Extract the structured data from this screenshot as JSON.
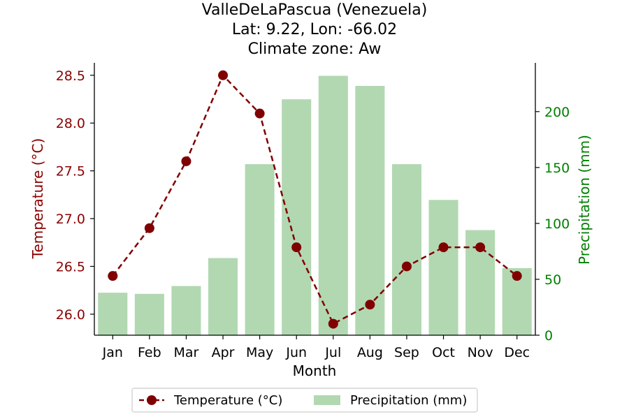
{
  "chart_data": {
    "type": "bar+line",
    "title": [
      "ValleDeLaPascua (Venezuela)",
      "Lat: 9.22, Lon: -66.02",
      "Climate zone: Aw"
    ],
    "xlabel": "Month",
    "ylabel_left": "Temperature (°C)",
    "ylabel_right": "Precipitation (mm)",
    "categories": [
      "Jan",
      "Feb",
      "Mar",
      "Apr",
      "May",
      "Jun",
      "Jul",
      "Aug",
      "Sep",
      "Oct",
      "Nov",
      "Dec"
    ],
    "series": [
      {
        "name": "Temperature (°C)",
        "type": "line",
        "axis": "left",
        "style": "dashed-circle-markers",
        "color": "#800000",
        "values": [
          26.4,
          26.9,
          27.6,
          28.5,
          28.1,
          26.7,
          25.9,
          26.1,
          26.5,
          26.7,
          26.7,
          26.4
        ]
      },
      {
        "name": "Precipitation (mm)",
        "type": "bar",
        "axis": "right",
        "color": "#b2d8b2",
        "values": [
          38,
          37,
          44,
          69,
          153,
          211,
          232,
          223,
          153,
          121,
          94,
          60
        ]
      }
    ],
    "y_left": {
      "min": 25.78,
      "max": 28.63,
      "ticks": [
        "26.0",
        "26.5",
        "27.0",
        "27.5",
        "28.0",
        "28.5"
      ],
      "color": "#8b0000"
    },
    "y_right": {
      "min": 0,
      "max": 243.6,
      "ticks": [
        "0",
        "50",
        "100",
        "150",
        "200"
      ],
      "color": "#008000"
    },
    "legend": {
      "placement": "bottom-center",
      "entries": [
        "Temperature (°C)",
        "Precipitation (mm)"
      ]
    },
    "grid": false
  }
}
